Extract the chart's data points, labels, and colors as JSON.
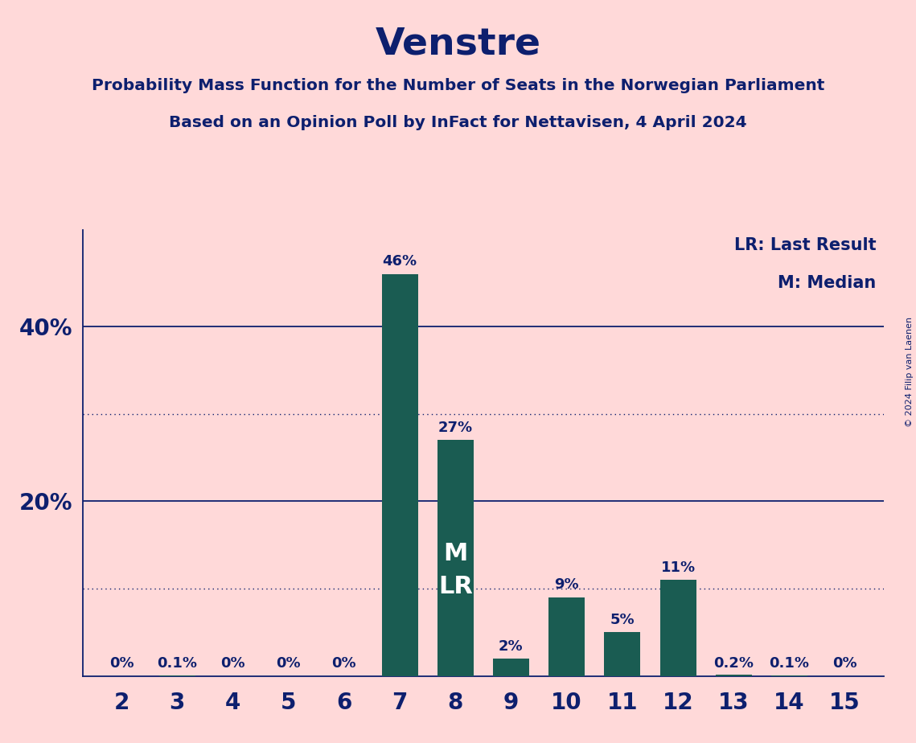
{
  "title": "Venstre",
  "subtitle1": "Probability Mass Function for the Number of Seats in the Norwegian Parliament",
  "subtitle2": "Based on an Opinion Poll by InFact for Nettavisen, 4 April 2024",
  "copyright": "© 2024 Filip van Laenen",
  "legend_lr": "LR: Last Result",
  "legend_m": "M: Median",
  "categories": [
    2,
    3,
    4,
    5,
    6,
    7,
    8,
    9,
    10,
    11,
    12,
    13,
    14,
    15
  ],
  "values": [
    0.0,
    0.1,
    0.0,
    0.0,
    0.0,
    46.0,
    27.0,
    2.0,
    9.0,
    5.0,
    11.0,
    0.2,
    0.1,
    0.0
  ],
  "labels": [
    "0%",
    "0.1%",
    "0%",
    "0%",
    "0%",
    "46%",
    "27%",
    "2%",
    "9%",
    "5%",
    "11%",
    "0.2%",
    "0.1%",
    "0%"
  ],
  "bar_color": "#1a5c52",
  "background_color": "#ffd9d9",
  "text_color": "#0d1f6e",
  "median_bar_seat": 8,
  "median_label": "M",
  "lr_label": "LR",
  "solid_hlines": [
    20.0,
    40.0
  ],
  "dotted_hlines": [
    10.0,
    30.0
  ],
  "ylim_max": 51,
  "bar_width": 0.65
}
